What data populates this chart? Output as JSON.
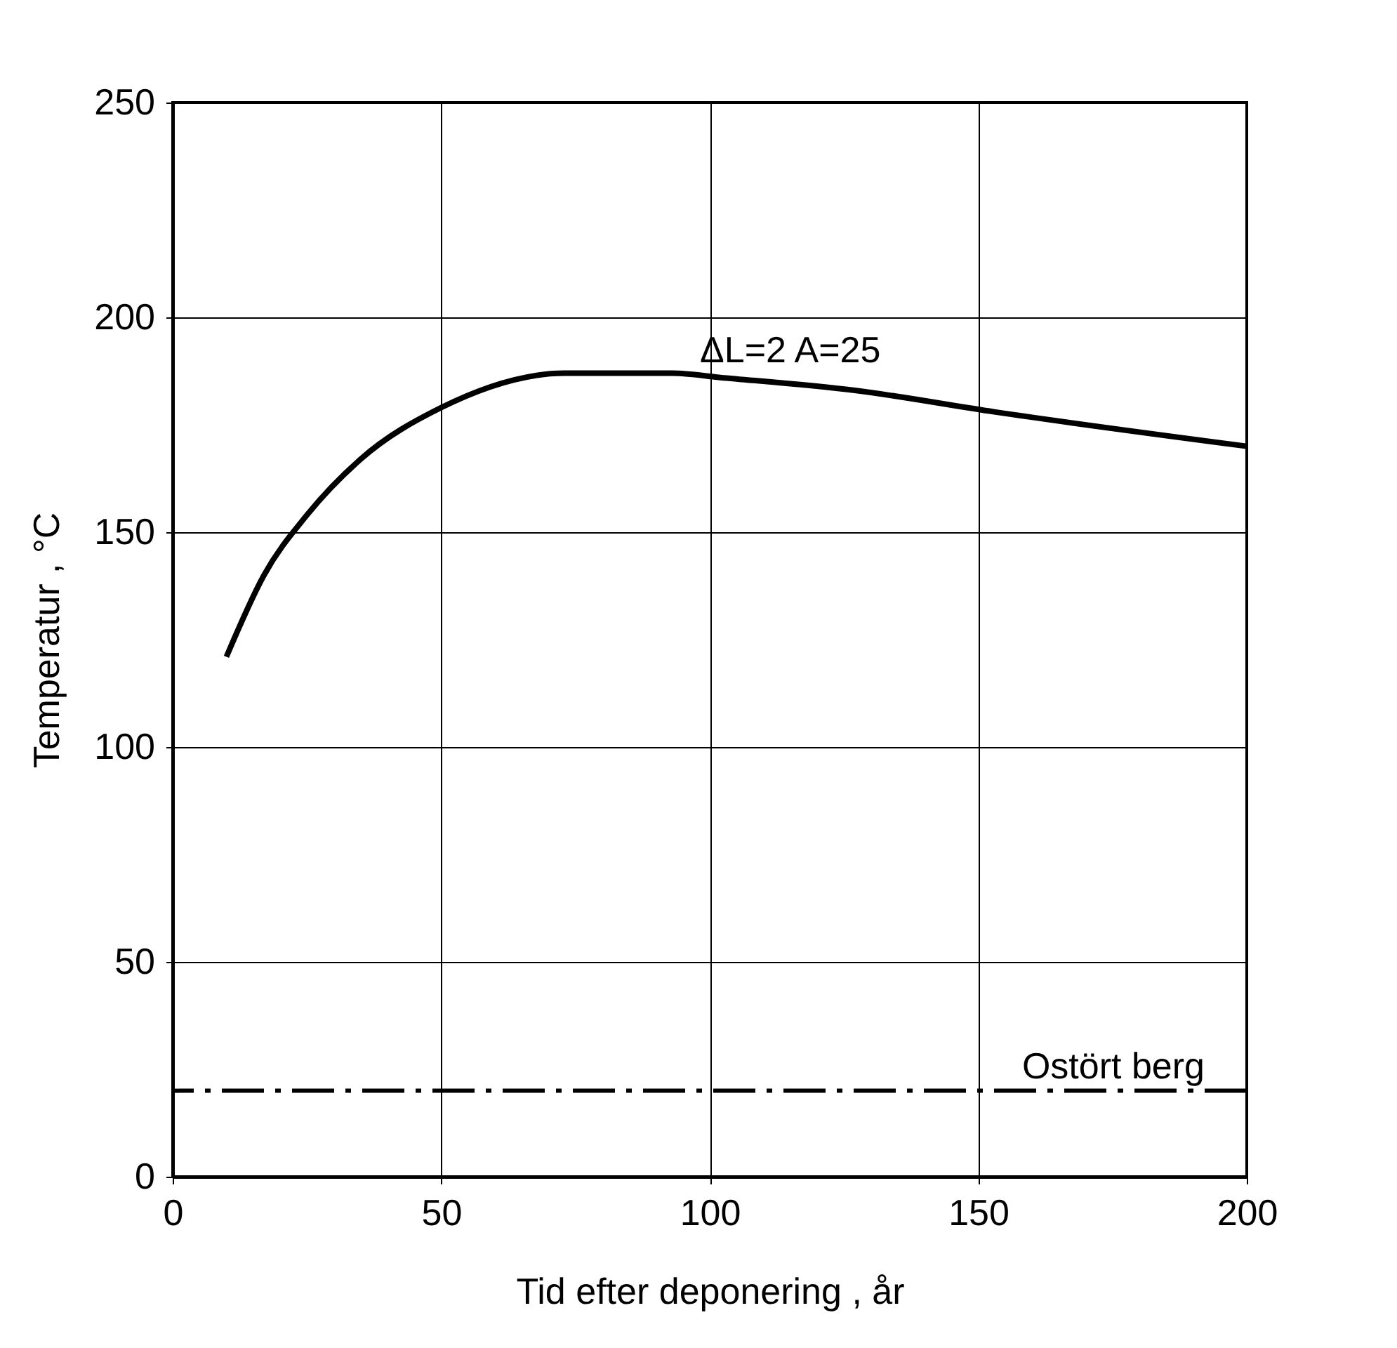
{
  "chart_data": {
    "type": "line",
    "xlabel": "Tid efter deponering , år",
    "ylabel": "Temperatur , °C",
    "x": [
      10,
      17,
      25,
      35,
      50,
      73,
      93,
      102,
      127,
      153,
      200
    ],
    "series": [
      {
        "color": "#000000",
        "values": [
          121,
          140,
          154,
          167,
          179,
          187,
          187,
          186,
          183,
          178,
          170
        ]
      }
    ],
    "xlim": [
      0,
      200
    ],
    "ylim": [
      0,
      250
    ],
    "xticks": [
      0,
      50,
      100,
      150,
      200
    ],
    "yticks": [
      0,
      50,
      100,
      150,
      200,
      250
    ],
    "grid": true,
    "line_style": "solid",
    "ref_lines": [
      {
        "axis": "y",
        "value": 20,
        "label": "Ostört berg",
        "line_style": "dashdot",
        "color": "#000000"
      }
    ],
    "annotations": [
      {
        "text": "ΔL=2  A=25",
        "x": 115,
        "y": 186
      }
    ]
  }
}
